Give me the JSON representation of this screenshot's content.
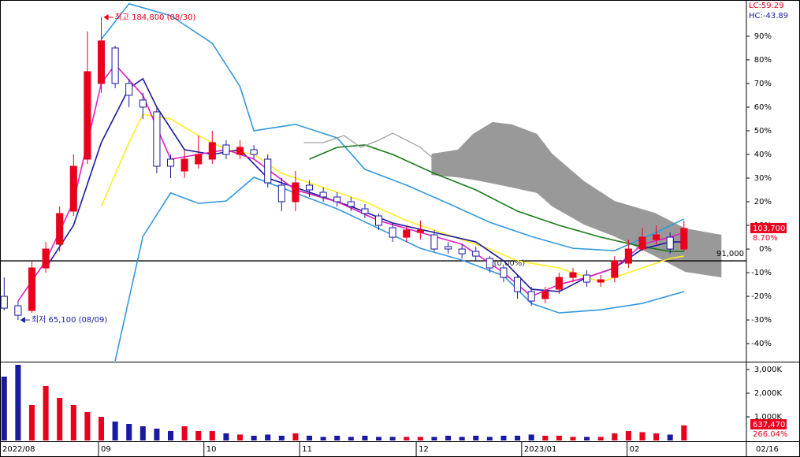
{
  "chart_data": {
    "type": "candlestick",
    "x": [
      0,
      1,
      2,
      3,
      4,
      5,
      6,
      7,
      8,
      9,
      10,
      11,
      12,
      13,
      14,
      15,
      16,
      17,
      18,
      19,
      20,
      21,
      22,
      23,
      24,
      25,
      26,
      27,
      28,
      29,
      30,
      31,
      32,
      33,
      34,
      35,
      36,
      37,
      38,
      39,
      40,
      41,
      42,
      43,
      44,
      45,
      46,
      47,
      48,
      49
    ],
    "open": [
      -20,
      -24,
      -26,
      -8,
      2,
      16,
      38,
      70,
      85,
      70,
      63,
      58,
      38,
      33,
      36,
      38,
      44,
      40,
      42,
      38,
      27,
      20,
      27,
      24,
      22,
      20,
      17,
      14,
      9,
      5,
      7,
      6,
      1,
      0,
      -1,
      -4,
      -8,
      -12,
      -18,
      -21,
      -17,
      -12,
      -11,
      -14,
      -12,
      -6,
      0,
      4,
      5,
      0
    ],
    "high": [
      -12,
      -22,
      -5,
      3,
      18,
      40,
      92,
      98,
      86,
      72,
      66,
      60,
      40,
      42,
      48,
      50,
      46,
      46,
      44,
      40,
      30,
      33,
      29,
      26,
      24,
      22,
      19,
      15,
      11,
      10,
      12,
      8,
      3,
      2,
      1,
      -3,
      -7,
      -11,
      -16,
      -16,
      -10,
      -8,
      -9,
      -11,
      -3,
      4,
      9,
      10,
      7,
      12
    ],
    "low": [
      -26,
      -30,
      -27,
      -10,
      -1,
      14,
      36,
      66,
      68,
      60,
      55,
      32,
      30,
      30,
      34,
      36,
      38,
      38,
      38,
      26,
      16,
      16,
      22,
      20,
      18,
      16,
      13,
      8,
      3,
      3,
      4,
      -1,
      -2,
      -4,
      -5,
      -10,
      -14,
      -21,
      -24,
      -23,
      -19,
      -14,
      -16,
      -16,
      -14,
      -8,
      -1,
      2,
      -2,
      -1
    ],
    "close": [
      -25,
      -28,
      -8,
      0,
      15,
      35,
      75,
      88,
      70,
      65,
      60,
      35,
      35,
      38,
      40,
      45,
      40,
      43,
      40,
      28,
      20,
      28,
      25,
      22,
      20,
      18,
      15,
      10,
      5,
      8,
      8,
      0,
      0,
      -2,
      -3,
      -8,
      -12,
      -18,
      -22,
      -18,
      -12,
      -10,
      -14,
      -13,
      -5,
      0,
      5,
      6,
      0,
      8.7
    ],
    "up_color": "#e8001c",
    "down_color": "#1a1aa0",
    "volume": [
      2700000,
      3200000,
      1500000,
      2300000,
      1800000,
      1500000,
      1200000,
      1000000,
      800000,
      700000,
      600000,
      500000,
      400000,
      600000,
      400000,
      400000,
      300000,
      250000,
      200000,
      250000,
      200000,
      300000,
      200000,
      150000,
      200000,
      150000,
      200000,
      150000,
      150000,
      150000,
      150000,
      150000,
      200000,
      150000,
      200000,
      150000,
      200000,
      200000,
      250000,
      200000,
      200000,
      150000,
      150000,
      150000,
      300000,
      400000,
      350000,
      300000,
      250000,
      637470
    ],
    "xlim": [
      -0.3,
      53.5
    ],
    "xticks": [
      {
        "value": -0.3,
        "label": "2022/08"
      },
      {
        "value": 6.8,
        "label": "09"
      },
      {
        "value": 14.4,
        "label": "10"
      },
      {
        "value": 21.3,
        "label": "11"
      },
      {
        "value": 29.7,
        "label": "12"
      },
      {
        "value": 37.3,
        "label": "2023/01"
      },
      {
        "value": 44.9,
        "label": "02"
      },
      {
        "value": 53.5,
        "label": "02/16"
      }
    ],
    "ylim": [
      -47.3,
      105.3
    ],
    "yticks": [
      {
        "value": 90,
        "label": "90%"
      },
      {
        "value": 80,
        "label": "80%"
      },
      {
        "value": 70,
        "label": "70%"
      },
      {
        "value": 60,
        "label": "60%"
      },
      {
        "value": 50,
        "label": "50%"
      },
      {
        "value": 40,
        "label": "40%"
      },
      {
        "value": 30,
        "label": "30%"
      },
      {
        "value": 20,
        "label": "20%"
      },
      {
        "value": 10,
        "label": "10%"
      },
      {
        "value": 0,
        "label": "0%"
      },
      {
        "value": -10,
        "label": "-10%"
      },
      {
        "value": -20,
        "label": "-20%"
      },
      {
        "value": -30,
        "label": "-30%"
      },
      {
        "value": -40,
        "label": "-40%"
      }
    ],
    "volume_ylim": [
      0,
      3300000
    ],
    "volume_ticks": [
      {
        "value": 3000000,
        "label": "3,000K"
      },
      {
        "value": 2000000,
        "label": "2,000K"
      },
      {
        "value": 1000000,
        "label": "1,000K"
      }
    ],
    "overlays": [
      {
        "color": "#3399dd",
        "x": [
          7,
          9,
          12,
          15,
          17,
          18,
          21,
          24,
          26,
          29,
          32,
          35,
          38,
          41,
          44,
          47,
          49
        ],
        "values": [
          88.7,
          103.7,
          98.7,
          87,
          68.7,
          50,
          52.7,
          47,
          33.7,
          27,
          19.3,
          11.3,
          5.3,
          0.3,
          -0.7,
          7,
          12.7
        ]
      },
      {
        "color": "#3399dd",
        "x": [
          8,
          10,
          12,
          14,
          16,
          18,
          21,
          24,
          27,
          30,
          33,
          36,
          38,
          40,
          43,
          46,
          49
        ],
        "values": [
          -47.3,
          5.3,
          23.7,
          19.3,
          20.3,
          30.3,
          23.7,
          17,
          8.7,
          0.3,
          -4.7,
          -11.3,
          -23,
          -27,
          -25.7,
          -23,
          -18
        ]
      },
      {
        "color": "#ffee22",
        "x": [
          7,
          9,
          10,
          12,
          14,
          16,
          18,
          20,
          23,
          26,
          29,
          32,
          35,
          37,
          40,
          43,
          46,
          48,
          49
        ],
        "values": [
          18,
          45,
          57,
          55,
          48,
          42,
          40,
          32,
          26,
          20,
          12,
          6,
          0,
          -5,
          -8,
          -14,
          -8,
          -4,
          -3
        ]
      },
      {
        "color": "#1a7a1a",
        "x": [
          22,
          24,
          26,
          28,
          31,
          34,
          37,
          40,
          43,
          46,
          48,
          49
        ],
        "values": [
          38,
          43,
          44,
          40,
          32,
          25,
          16,
          10,
          5,
          1,
          -1,
          -1
        ]
      },
      {
        "color": "#1a1aa0",
        "x": [
          3,
          5,
          7,
          9,
          10,
          11,
          13,
          15,
          17,
          19,
          22,
          25,
          28,
          31,
          34,
          36,
          38,
          40,
          42,
          44,
          46,
          48,
          49
        ],
        "values": [
          -8,
          10,
          45,
          68,
          72,
          60,
          42,
          40,
          42,
          30,
          24,
          18,
          11,
          7,
          3,
          -5,
          -17,
          -18,
          -12,
          -8,
          0,
          3,
          3
        ]
      },
      {
        "color": "#e020c0",
        "x": [
          1,
          3,
          5,
          7,
          8,
          10,
          12,
          14,
          16,
          18,
          21,
          24,
          27,
          30,
          33,
          36,
          38,
          40,
          42,
          44,
          46,
          48,
          49
        ],
        "values": [
          -22,
          -5,
          20,
          70,
          78,
          65,
          38,
          40,
          42,
          38,
          25,
          20,
          12,
          7,
          2,
          -10,
          -20,
          -15,
          -12,
          -8,
          2,
          5,
          7
        ]
      },
      {
        "color": "#a0a0a0",
        "x": [
          21.6,
          23,
          24.5,
          25.7,
          27,
          28,
          30,
          31
        ],
        "values": [
          45,
          45,
          48,
          43,
          46,
          49,
          43,
          38
        ]
      }
    ],
    "cloud": {
      "color": "#999999",
      "x": [
        30.8,
        32.7,
        33.8,
        35.2,
        36.6,
        38.4,
        39.5,
        41.8,
        44,
        46.9,
        49.1,
        51.7
      ],
      "upper": [
        40.3,
        42,
        48.7,
        53.7,
        52.7,
        48.7,
        40.3,
        28.7,
        20.3,
        15.3,
        8.7,
        6
      ],
      "lower": [
        31.3,
        30.3,
        29.3,
        27.7,
        26,
        23.7,
        18,
        10.3,
        5.3,
        -3,
        -9.7,
        -12
      ]
    },
    "reference_line": {
      "value": -5,
      "label": "91,000"
    },
    "annotations": [
      {
        "x": 7,
        "value": 98,
        "label": "최고 184,800 (08/30)",
        "color": "#e8001c"
      },
      {
        "x": 1,
        "value": -30,
        "label": "최저 65,100 (08/09)",
        "color": "#1a1aa0"
      },
      {
        "x": 35.3,
        "value": -6,
        "label": "(0.00%)",
        "color": "#333333"
      }
    ],
    "indicators": [
      {
        "label": "LC:59.29",
        "color": "#e8001c"
      },
      {
        "label": "HC:-43.89",
        "color": "#1a1aa0"
      }
    ],
    "last_price": {
      "value": 8.7,
      "label": "103,700"
    },
    "last_change": {
      "value": 8.7,
      "label": "8.70%"
    },
    "volume_tags": [
      "637,470",
      "266.04%"
    ]
  }
}
